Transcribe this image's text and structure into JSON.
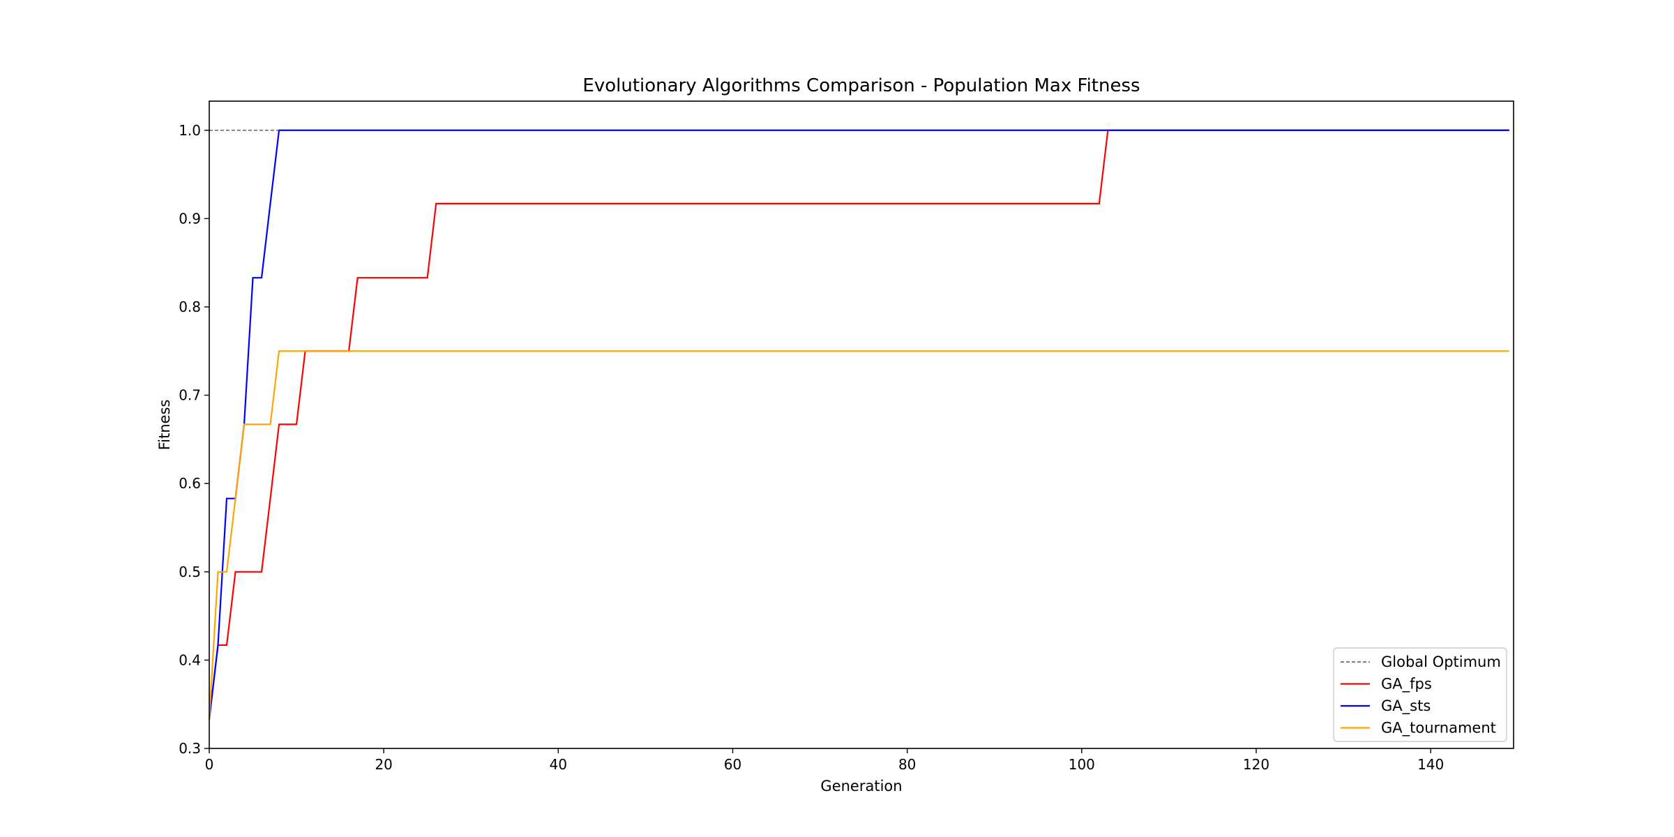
{
  "chart_data": {
    "type": "line",
    "title": "Evolutionary Algorithms Comparison - Population Max Fitness",
    "xlabel": "Generation",
    "ylabel": "Fitness",
    "xlim": [
      0,
      149
    ],
    "ylim": [
      0.3,
      1.033
    ],
    "xticks": [
      0,
      20,
      40,
      60,
      80,
      100,
      120,
      140
    ],
    "xtick_labels": [
      "0",
      "20",
      "40",
      "60",
      "80",
      "100",
      "120",
      "140"
    ],
    "yticks": [
      0.3,
      0.4,
      0.5,
      0.6,
      0.7,
      0.8,
      0.9,
      1.0
    ],
    "ytick_labels": [
      "0.3",
      "0.4",
      "0.5",
      "0.6",
      "0.7",
      "0.8",
      "0.9",
      "1.0"
    ],
    "grid": false,
    "legend_position": "bottom-right",
    "series": [
      {
        "name": "Global Optimum",
        "color": "#555555",
        "style": "dashed",
        "x": [
          0,
          8
        ],
        "y": [
          1.0,
          1.0
        ]
      },
      {
        "name": "GA_fps",
        "color": "#ff0000",
        "style": "solid",
        "x": [
          0,
          1,
          2,
          3,
          4,
          5,
          6,
          7,
          8,
          9,
          10,
          11,
          12,
          13,
          14,
          15,
          16,
          17,
          18,
          19,
          20,
          21,
          22,
          23,
          24,
          25,
          26,
          27,
          101,
          102,
          103,
          104,
          149
        ],
        "y": [
          0.333,
          0.417,
          0.417,
          0.5,
          0.5,
          0.5,
          0.5,
          0.583,
          0.667,
          0.667,
          0.667,
          0.75,
          0.75,
          0.75,
          0.75,
          0.75,
          0.75,
          0.833,
          0.833,
          0.833,
          0.833,
          0.833,
          0.833,
          0.833,
          0.833,
          0.833,
          0.917,
          0.917,
          0.917,
          0.917,
          1.0,
          1.0,
          1.0
        ]
      },
      {
        "name": "GA_sts",
        "color": "#0000ff",
        "style": "solid",
        "x": [
          0,
          1,
          2,
          3,
          4,
          5,
          6,
          7,
          8,
          149
        ],
        "y": [
          0.333,
          0.417,
          0.583,
          0.583,
          0.667,
          0.833,
          0.833,
          0.917,
          1.0,
          1.0
        ]
      },
      {
        "name": "GA_tournament",
        "color": "#ffa500",
        "style": "solid",
        "x": [
          0,
          1,
          2,
          3,
          4,
          5,
          6,
          7,
          8,
          149
        ],
        "y": [
          0.333,
          0.5,
          0.5,
          0.583,
          0.667,
          0.667,
          0.667,
          0.667,
          0.75,
          0.75
        ]
      }
    ]
  }
}
